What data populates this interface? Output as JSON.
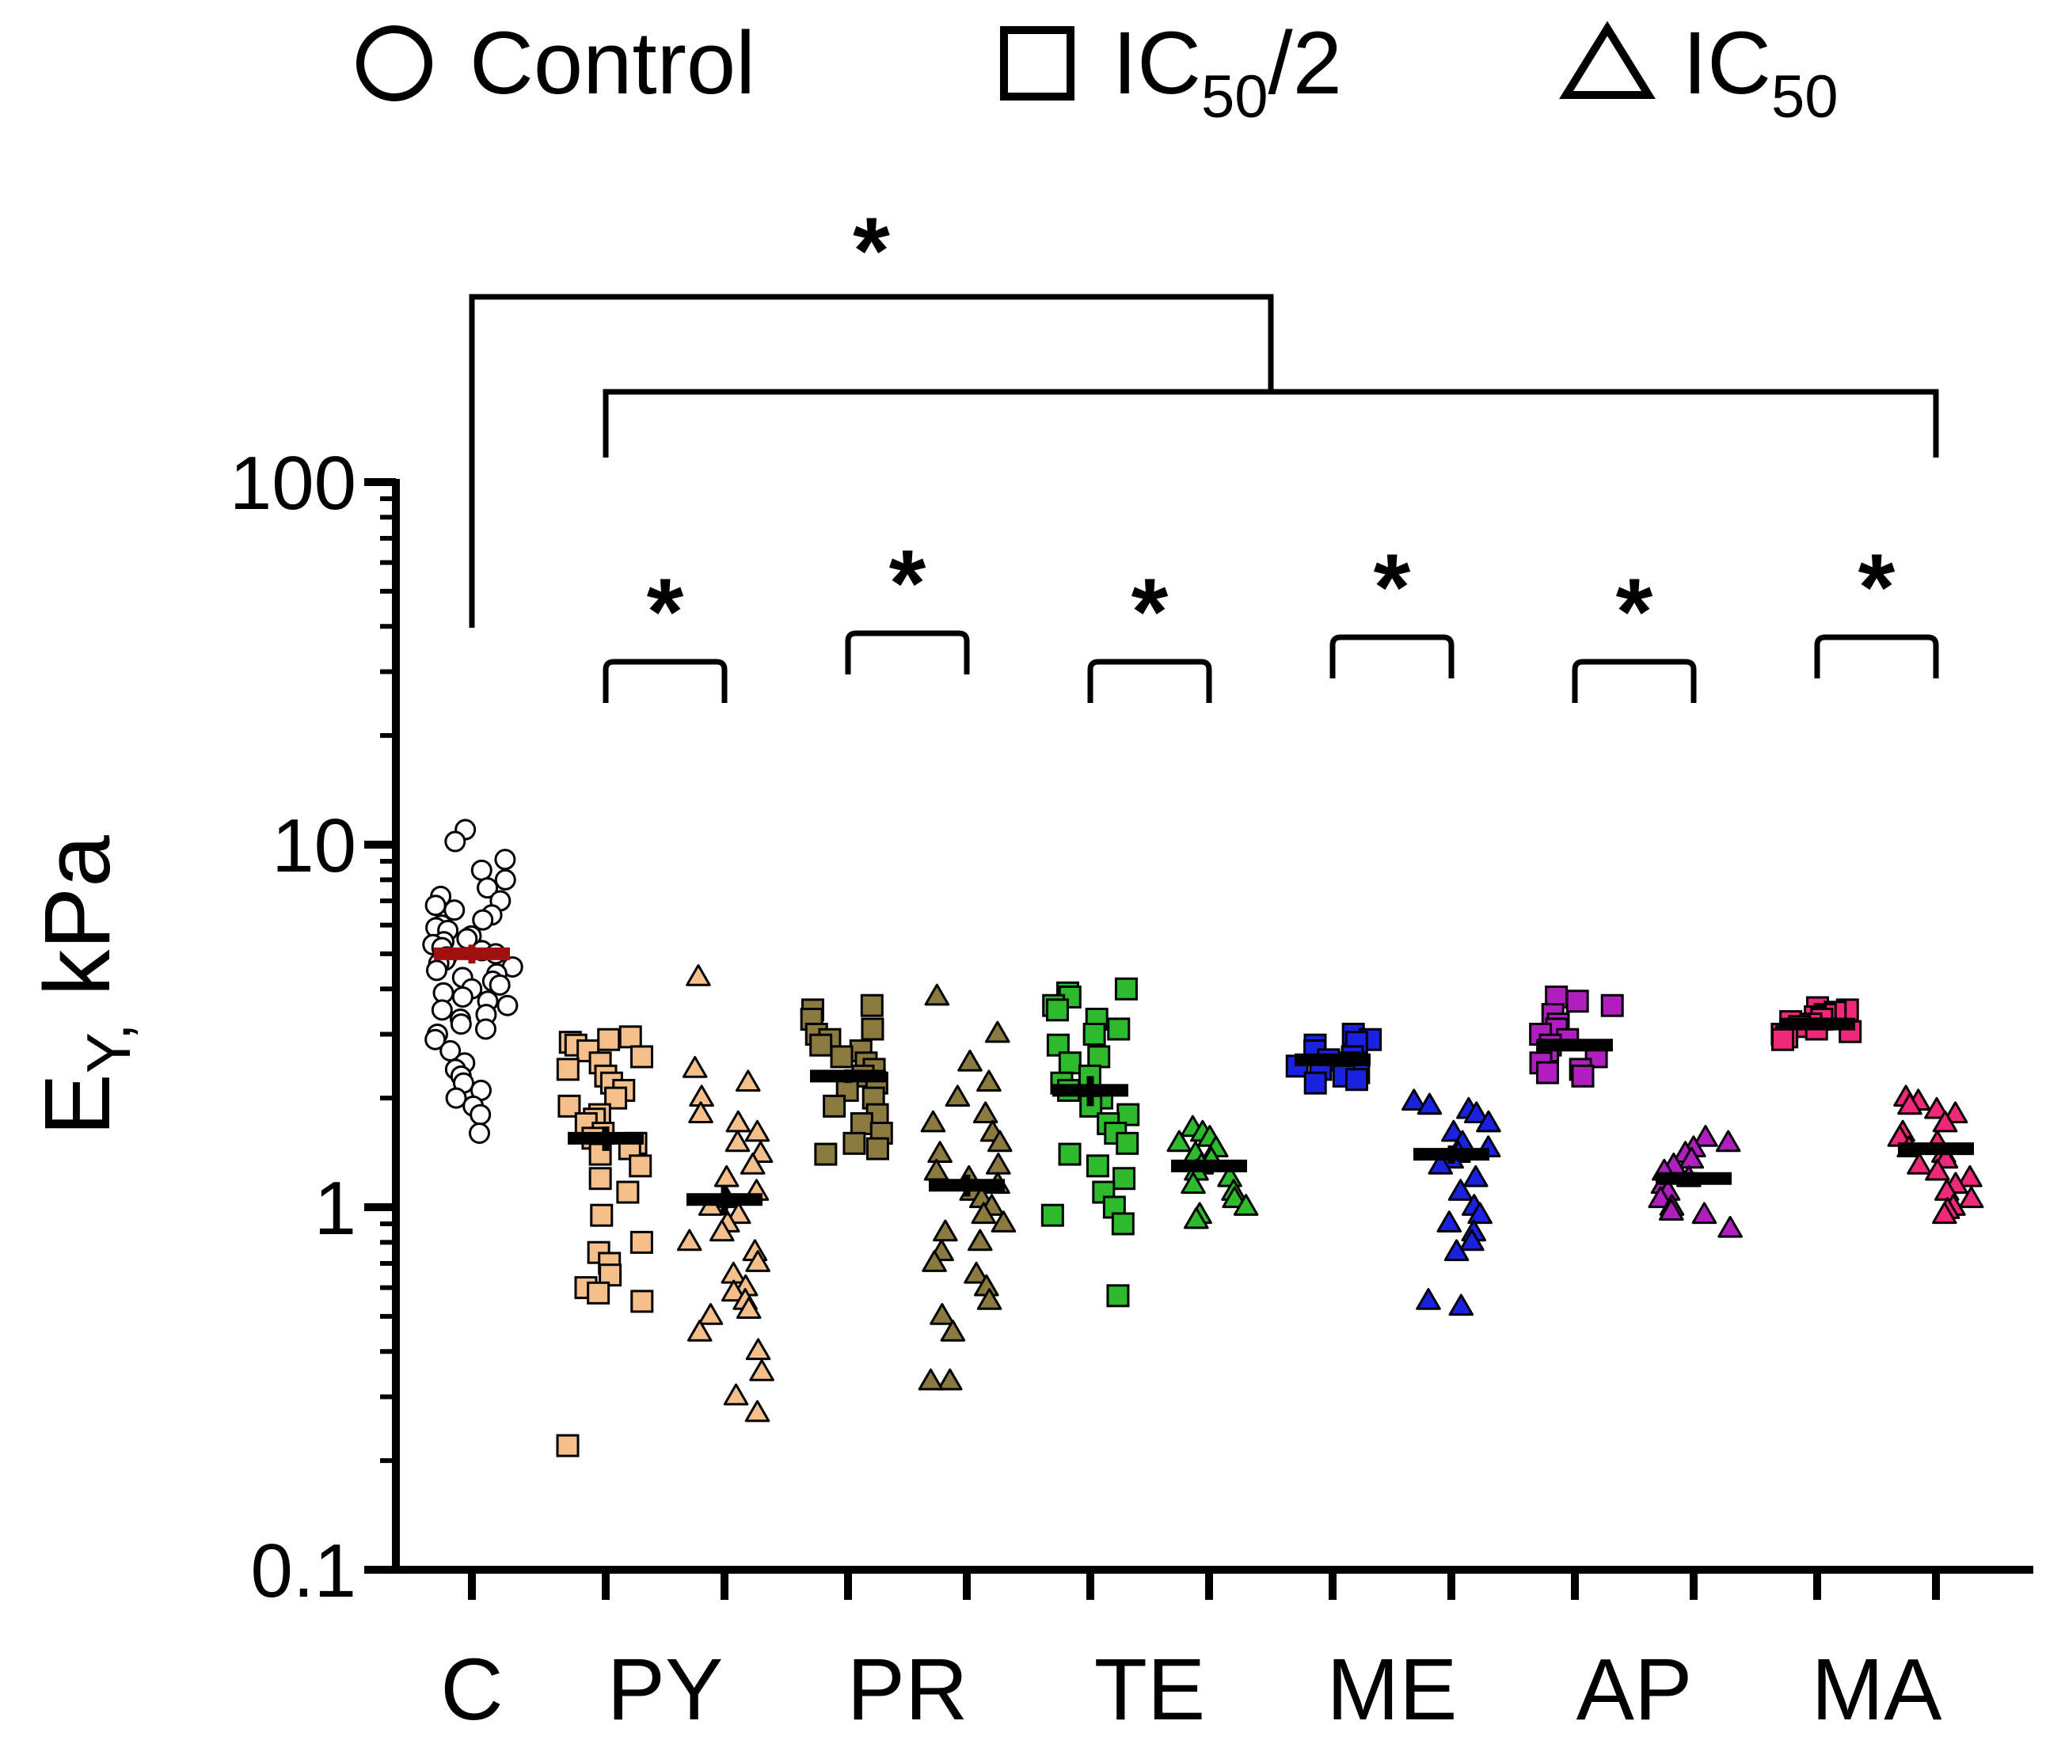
{
  "chart_data": {
    "type": "scatter",
    "title": "",
    "ylabel_main": "E",
    "ylabel_sub": "Y,",
    "ylabel_unit": "kPa",
    "xlabel": "",
    "y_scale": "log",
    "ylim": [
      0.1,
      100
    ],
    "y_ticks": [
      {
        "value": 100,
        "label": "100"
      },
      {
        "value": 10,
        "label": "10"
      },
      {
        "value": 1,
        "label": "1"
      },
      {
        "value": 0.1,
        "label": "0.1"
      }
    ],
    "categories": [
      "C",
      "PY",
      "PR",
      "TE",
      "ME",
      "AP",
      "MA"
    ],
    "legend": {
      "placement": "top",
      "items": [
        {
          "marker": "circle",
          "label": "Control",
          "sub": "",
          "suffix": ""
        },
        {
          "marker": "square",
          "label": "IC",
          "sub": "50",
          "suffix": "/2"
        },
        {
          "marker": "triangle",
          "label": "IC",
          "sub": "50",
          "suffix": ""
        }
      ]
    },
    "significance": {
      "star": "*",
      "overall": "C vs all treated groups",
      "pairs": [
        "PY",
        "PR",
        "TE",
        "ME",
        "AP",
        "MA"
      ]
    },
    "series": [
      {
        "name": "Control",
        "category": "C",
        "dose": "control",
        "marker": "circle",
        "color": "#ffffff",
        "mean_color": "#a01010",
        "mean": 5.0,
        "sem": 0.3,
        "values": [
          11.0,
          10.2,
          9.1,
          8.5,
          8.0,
          7.6,
          7.2,
          7.0,
          6.8,
          6.6,
          6.4,
          6.2,
          6.0,
          5.9,
          5.8,
          5.6,
          5.5,
          5.4,
          5.3,
          5.2,
          5.1,
          5.0,
          4.9,
          4.8,
          4.7,
          4.6,
          4.5,
          4.4,
          4.3,
          4.2,
          4.1,
          4.0,
          3.9,
          3.8,
          3.7,
          3.6,
          3.5,
          3.4,
          3.3,
          3.2,
          3.1,
          3.0,
          2.9,
          2.7,
          2.5,
          2.4,
          2.3,
          2.2,
          2.1,
          2.0,
          1.9,
          1.8,
          1.6
        ]
      },
      {
        "name": "PY IC50/2",
        "category": "PY",
        "dose": "ic50_half",
        "marker": "square",
        "color": "#f4bf8a",
        "mean_color": "#000000",
        "mean": 1.55,
        "sem": 0.12,
        "values": [
          2.95,
          2.9,
          2.85,
          2.8,
          2.7,
          2.6,
          2.5,
          2.4,
          2.3,
          2.2,
          2.1,
          2.0,
          1.9,
          1.8,
          1.75,
          1.7,
          1.6,
          1.55,
          1.5,
          1.45,
          1.4,
          1.3,
          1.2,
          1.1,
          0.95,
          0.8,
          0.75,
          0.7,
          0.65,
          0.6,
          0.58,
          0.55,
          0.22
        ]
      },
      {
        "name": "PY IC50",
        "category": "PY",
        "dose": "ic50",
        "marker": "triangle",
        "color": "#f4bf8a",
        "mean_color": "#000000",
        "mean": 1.05,
        "sem": 0.1,
        "values": [
          4.3,
          2.4,
          2.2,
          2.0,
          1.8,
          1.7,
          1.6,
          1.5,
          1.4,
          1.3,
          1.2,
          1.1,
          1.05,
          1.0,
          0.95,
          0.9,
          0.85,
          0.8,
          0.75,
          0.7,
          0.65,
          0.6,
          0.58,
          0.55,
          0.52,
          0.5,
          0.45,
          0.4,
          0.35,
          0.3,
          0.27
        ]
      },
      {
        "name": "PR IC50/2",
        "category": "PR",
        "dose": "ic50_half",
        "marker": "square",
        "color": "#8b7a40",
        "mean_color": "#000000",
        "mean": 2.3,
        "sem": 0.1,
        "values": [
          3.6,
          3.5,
          3.3,
          3.1,
          3.0,
          2.9,
          2.8,
          2.7,
          2.6,
          2.5,
          2.4,
          2.3,
          2.2,
          2.1,
          2.0,
          1.9,
          1.8,
          1.7,
          1.6,
          1.5,
          1.45,
          1.4
        ]
      },
      {
        "name": "PR IC50",
        "category": "PR",
        "dose": "ic50",
        "marker": "triangle",
        "color": "#8b7a40",
        "mean_color": "#000000",
        "mean": 1.15,
        "sem": 0.08,
        "values": [
          3.8,
          3.0,
          2.5,
          2.2,
          2.0,
          1.8,
          1.7,
          1.6,
          1.5,
          1.4,
          1.3,
          1.25,
          1.2,
          1.15,
          1.1,
          1.05,
          1.0,
          0.95,
          0.9,
          0.85,
          0.8,
          0.75,
          0.7,
          0.65,
          0.6,
          0.55,
          0.5,
          0.45,
          0.33,
          0.33
        ]
      },
      {
        "name": "TE IC50/2",
        "category": "TE",
        "dose": "ic50_half",
        "marker": "square",
        "color": "#2dbb2d",
        "mean_color": "#000000",
        "mean": 2.1,
        "sem": 0.2,
        "values": [
          4.0,
          3.9,
          3.8,
          3.6,
          3.5,
          3.3,
          3.1,
          3.0,
          2.8,
          2.6,
          2.5,
          2.3,
          2.2,
          2.1,
          2.0,
          1.9,
          1.8,
          1.7,
          1.6,
          1.5,
          1.4,
          1.3,
          1.2,
          1.1,
          1.0,
          0.95,
          0.9,
          0.57
        ]
      },
      {
        "name": "TE IC50",
        "category": "TE",
        "dose": "ic50",
        "marker": "triangle",
        "color": "#2dbb2d",
        "mean_color": "#000000",
        "mean": 1.3,
        "sem": 0.05,
        "values": [
          1.65,
          1.6,
          1.55,
          1.5,
          1.45,
          1.4,
          1.35,
          1.3,
          1.25,
          1.2,
          1.15,
          1.1,
          1.05,
          1.0,
          0.95,
          0.92
        ]
      },
      {
        "name": "ME IC50/2",
        "category": "ME",
        "dose": "ic50_half",
        "marker": "square",
        "color": "#1a22e0",
        "mean_color": "#000000",
        "mean": 2.55,
        "sem": 0.05,
        "values": [
          3.0,
          2.9,
          2.85,
          2.8,
          2.7,
          2.6,
          2.55,
          2.5,
          2.45,
          2.4,
          2.35,
          2.3,
          2.25,
          2.2
        ]
      },
      {
        "name": "ME IC50",
        "category": "ME",
        "dose": "ic50",
        "marker": "triangle",
        "color": "#1a22e0",
        "mean_color": "#000000",
        "mean": 1.4,
        "sem": 0.08,
        "values": [
          1.95,
          1.9,
          1.85,
          1.8,
          1.7,
          1.6,
          1.5,
          1.45,
          1.4,
          1.35,
          1.3,
          1.2,
          1.1,
          1.0,
          0.95,
          0.9,
          0.85,
          0.8,
          0.75,
          0.55,
          0.53
        ]
      },
      {
        "name": "AP IC50/2",
        "category": "AP",
        "dose": "ic50_half",
        "marker": "square",
        "color": "#b01ec0",
        "mean_color": "#000000",
        "mean": 2.8,
        "sem": 0.08,
        "values": [
          3.8,
          3.7,
          3.6,
          3.4,
          3.2,
          3.1,
          3.0,
          2.9,
          2.8,
          2.7,
          2.6,
          2.5,
          2.4,
          2.35,
          2.3
        ]
      },
      {
        "name": "AP IC50",
        "category": "AP",
        "dose": "ic50",
        "marker": "triangle",
        "color": "#b01ec0",
        "mean_color": "#000000",
        "mean": 1.2,
        "sem": 0.05,
        "values": [
          1.55,
          1.5,
          1.45,
          1.4,
          1.35,
          1.3,
          1.25,
          1.2,
          1.15,
          1.1,
          1.05,
          1.0,
          0.97,
          0.95,
          0.87
        ]
      },
      {
        "name": "MA IC50/2",
        "category": "MA",
        "dose": "ic50_half",
        "marker": "square",
        "color": "#f0287a",
        "mean_color": "#000000",
        "mean": 3.2,
        "sem": 0.05,
        "values": [
          3.55,
          3.5,
          3.45,
          3.4,
          3.35,
          3.3,
          3.25,
          3.2,
          3.15,
          3.1,
          3.05,
          3.0,
          2.95,
          2.9
        ]
      },
      {
        "name": "MA IC50",
        "category": "MA",
        "dose": "ic50",
        "marker": "triangle",
        "color": "#f0287a",
        "mean_color": "#000000",
        "mean": 1.45,
        "sem": 0.05,
        "values": [
          2.0,
          1.95,
          1.9,
          1.85,
          1.8,
          1.7,
          1.6,
          1.55,
          1.5,
          1.45,
          1.4,
          1.35,
          1.3,
          1.25,
          1.2,
          1.15,
          1.1,
          1.05,
          1.0,
          0.98,
          0.95
        ]
      }
    ]
  }
}
